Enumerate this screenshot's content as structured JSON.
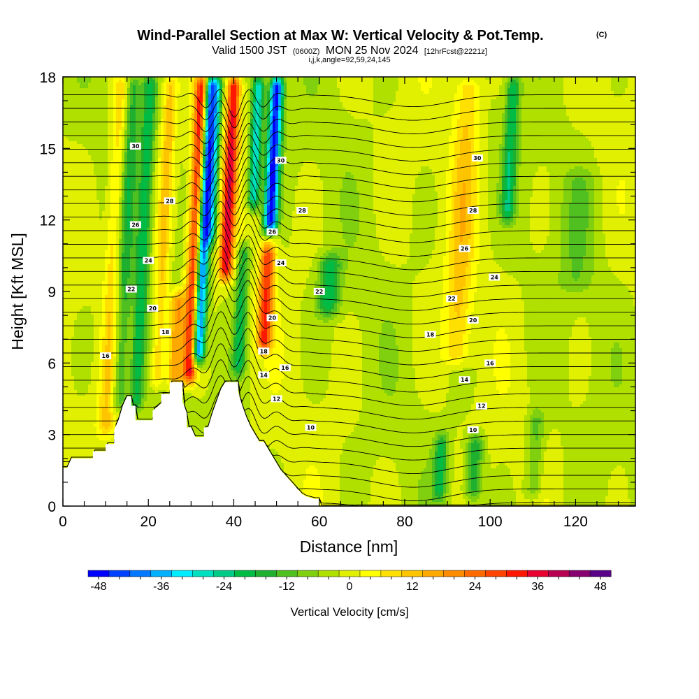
{
  "title": {
    "main": "Wind-Parallel Section at Max W: Vertical Velocity & Pot.Temp.",
    "copyright": "(C)",
    "valid_prefix": "Valid 1500 JST",
    "valid_utc": "(0600Z)",
    "valid_date": "MON 25 Nov 2024",
    "forecast": "[12hrFcst@2221z]",
    "indices": "i,j,k,angle=92,59,24,145"
  },
  "chart_data": {
    "type": "heatmap",
    "xlabel": "Distance [nm]",
    "ylabel": "Height [Kft MSL]",
    "xlim": [
      0,
      134
    ],
    "ylim": [
      0,
      18
    ],
    "x_ticks": [
      0,
      20,
      40,
      60,
      80,
      100,
      120
    ],
    "y_ticks": [
      0,
      3,
      6,
      9,
      12,
      15,
      18
    ],
    "terrain_kft": [
      [
        0,
        1.6
      ],
      [
        1,
        1.6
      ],
      [
        2,
        2.0
      ],
      [
        7,
        2.0
      ],
      [
        7,
        2.3
      ],
      [
        10,
        2.3
      ],
      [
        10,
        2.6
      ],
      [
        12,
        2.6
      ],
      [
        12,
        3.2
      ],
      [
        13,
        3.6
      ],
      [
        14,
        4.2
      ],
      [
        15,
        4.6
      ],
      [
        16,
        4.6
      ],
      [
        16,
        4.2
      ],
      [
        17,
        4.2
      ],
      [
        17,
        3.6
      ],
      [
        21,
        3.6
      ],
      [
        21,
        4.0
      ],
      [
        23,
        4.3
      ],
      [
        23,
        4.7
      ],
      [
        25,
        4.7
      ],
      [
        25,
        5.2
      ],
      [
        28,
        5.2
      ],
      [
        28,
        4.4
      ],
      [
        29,
        3.9
      ],
      [
        29,
        3.3
      ],
      [
        30,
        3.3
      ],
      [
        31,
        2.9
      ],
      [
        33,
        2.9
      ],
      [
        33,
        3.3
      ],
      [
        34,
        3.3
      ],
      [
        35,
        3.9
      ],
      [
        36,
        4.4
      ],
      [
        37,
        4.9
      ],
      [
        38,
        5.2
      ],
      [
        41,
        5.2
      ],
      [
        41,
        4.8
      ],
      [
        42,
        4.2
      ],
      [
        43,
        3.7
      ],
      [
        44,
        3.3
      ],
      [
        45,
        3.0
      ],
      [
        46,
        2.7
      ],
      [
        47,
        2.7
      ],
      [
        48,
        2.4
      ],
      [
        49,
        2.1
      ],
      [
        50,
        1.8
      ],
      [
        51,
        1.5
      ],
      [
        52,
        1.3
      ],
      [
        53,
        1.1
      ],
      [
        54,
        0.9
      ],
      [
        55,
        0.7
      ],
      [
        56,
        0.5
      ],
      [
        57,
        0.4
      ],
      [
        59,
        0.3
      ],
      [
        60,
        0.3
      ]
    ],
    "colorbar": {
      "label": "Vertical Velocity [cm/s]",
      "min": -48,
      "max": 48,
      "step": 4,
      "tick_labels": [
        -48,
        -36,
        -24,
        -12,
        0,
        12,
        24,
        36,
        48
      ],
      "colors": [
        "#0000ff",
        "#0040ff",
        "#0078ff",
        "#00b0ff",
        "#00ecff",
        "#00e0c0",
        "#00cc88",
        "#00bb44",
        "#20b030",
        "#50bf20",
        "#80d010",
        "#b0e000",
        "#e0f000",
        "#ffff00",
        "#ffe000",
        "#ffc400",
        "#ffa800",
        "#ff8c00",
        "#ff6a00",
        "#ff4400",
        "#ff1800",
        "#e80030",
        "#b80050",
        "#880070",
        "#580088"
      ]
    },
    "w_features": [
      {
        "x": 29.5,
        "x_half_width": 1.6,
        "z_bottom": 5.2,
        "z_top": 18,
        "w": 38
      },
      {
        "x": 31.5,
        "x_half_width": 1.5,
        "z_bottom": 6.0,
        "z_top": 18,
        "w": -44
      },
      {
        "x": 34.5,
        "x_half_width": 1.4,
        "z_bottom": 11.0,
        "z_top": 18,
        "w": -24
      },
      {
        "x": 38.0,
        "x_half_width": 1.6,
        "z_bottom": 9.5,
        "z_top": 18,
        "w": 36
      },
      {
        "x": 44.5,
        "x_half_width": 1.4,
        "z_bottom": 12.5,
        "z_top": 18,
        "w": -28
      },
      {
        "x": 48.5,
        "x_half_width": 1.6,
        "z_bottom": 11.5,
        "z_top": 18,
        "w": -46
      },
      {
        "x": 47.0,
        "x_half_width": 1.8,
        "z_bottom": 6.5,
        "z_top": 11.0,
        "w": 30
      },
      {
        "x": 41.0,
        "x_half_width": 1.5,
        "z_bottom": 5.5,
        "z_top": 11.0,
        "w": -18
      },
      {
        "x": 26.0,
        "x_half_width": 1.8,
        "z_bottom": 5.0,
        "z_top": 9.0,
        "w": 22
      },
      {
        "x": 17.0,
        "x_half_width": 1.6,
        "z_bottom": 4.0,
        "z_top": 18,
        "w": -18
      },
      {
        "x": 13.0,
        "x_half_width": 1.8,
        "z_bottom": 4.0,
        "z_top": 18,
        "w": -14
      },
      {
        "x": 10.0,
        "x_half_width": 2.0,
        "z_bottom": 3.0,
        "z_top": 18,
        "w": 12
      },
      {
        "x": 22.0,
        "x_half_width": 1.6,
        "z_bottom": 5.0,
        "z_top": 18,
        "w": 14
      },
      {
        "x": 62.0,
        "x_half_width": 2.5,
        "z_bottom": 8.0,
        "z_top": 10.5,
        "w": -18
      },
      {
        "x": 92.0,
        "x_half_width": 3.0,
        "z_bottom": 6.0,
        "z_top": 18,
        "w": 12
      },
      {
        "x": 104.0,
        "x_half_width": 1.6,
        "z_bottom": 12.0,
        "z_top": 18,
        "w": -18
      },
      {
        "x": 96.0,
        "x_half_width": 2.0,
        "z_bottom": 0.3,
        "z_top": 3.0,
        "w": -16
      },
      {
        "x": 88.0,
        "x_half_width": 1.6,
        "z_bottom": 0.3,
        "z_top": 3.0,
        "w": -16
      },
      {
        "x": 110.0,
        "x_half_width": 2.0,
        "z_bottom": 0.3,
        "z_top": 4.0,
        "w": -10
      },
      {
        "x": 120.0,
        "x_half_width": 4.0,
        "z_bottom": 9.0,
        "z_top": 14.0,
        "w": -6
      }
    ],
    "theta_contours": [
      {
        "level": 10,
        "label_x": 96,
        "label_z": 3.2
      },
      {
        "level": 12,
        "label_x": 98,
        "label_z": 4.2
      },
      {
        "level": 14,
        "label_x": 94,
        "label_z": 5.3
      },
      {
        "level": 16,
        "label_x": 100,
        "label_z": 6.0
      },
      {
        "level": 18,
        "label_x": 86,
        "label_z": 7.2
      },
      {
        "level": 20,
        "label_x": 96,
        "label_z": 7.8
      },
      {
        "level": 22,
        "label_x": 91,
        "label_z": 8.7
      },
      {
        "level": 24,
        "label_x": 101,
        "label_z": 9.6
      },
      {
        "level": 26,
        "label_x": 94,
        "label_z": 10.8
      },
      {
        "level": 28,
        "label_x": 96,
        "label_z": 12.4
      },
      {
        "level": 30,
        "label_x": 97,
        "label_z": 14.6
      }
    ],
    "theta_label_positions": [
      {
        "level": 10,
        "x": 58,
        "z": 3.3
      },
      {
        "level": 12,
        "x": 50,
        "z": 4.5
      },
      {
        "level": 14,
        "x": 47,
        "z": 5.5
      },
      {
        "level": 16,
        "x": 52,
        "z": 5.8
      },
      {
        "level": 16,
        "x": 10,
        "z": 6.3
      },
      {
        "level": 18,
        "x": 47,
        "z": 6.5
      },
      {
        "level": 18,
        "x": 24,
        "z": 7.3
      },
      {
        "level": 20,
        "x": 49,
        "z": 7.9
      },
      {
        "level": 20,
        "x": 21,
        "z": 8.3
      },
      {
        "level": 22,
        "x": 60,
        "z": 9.0
      },
      {
        "level": 22,
        "x": 16,
        "z": 9.1
      },
      {
        "level": 24,
        "x": 51,
        "z": 10.2
      },
      {
        "level": 24,
        "x": 20,
        "z": 10.3
      },
      {
        "level": 26,
        "x": 49,
        "z": 11.5
      },
      {
        "level": 26,
        "x": 17,
        "z": 11.8
      },
      {
        "level": 28,
        "x": 56,
        "z": 12.4
      },
      {
        "level": 28,
        "x": 25,
        "z": 12.8
      },
      {
        "level": 30,
        "x": 51,
        "z": 14.5
      },
      {
        "level": 30,
        "x": 17,
        "z": 15.1
      }
    ]
  }
}
